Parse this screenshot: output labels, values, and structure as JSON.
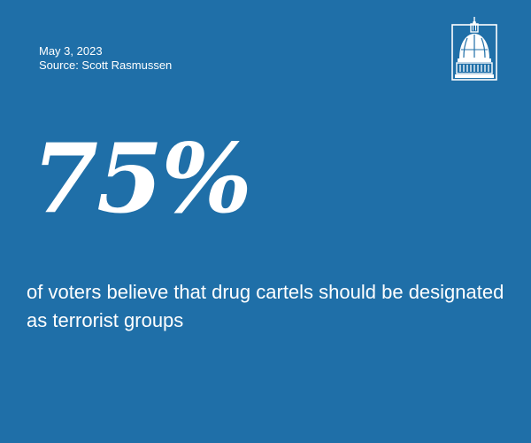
{
  "meta": {
    "date": "May 3, 2023",
    "source": "Source:  Scott Rasmussen"
  },
  "logo": {
    "icon": "capitol-dome-icon"
  },
  "stat": {
    "value": "75%",
    "caption": "of voters believe that drug cartels should be designated as terrorist groups"
  },
  "colors": {
    "background": "#1f6fa8",
    "text": "#ffffff"
  }
}
